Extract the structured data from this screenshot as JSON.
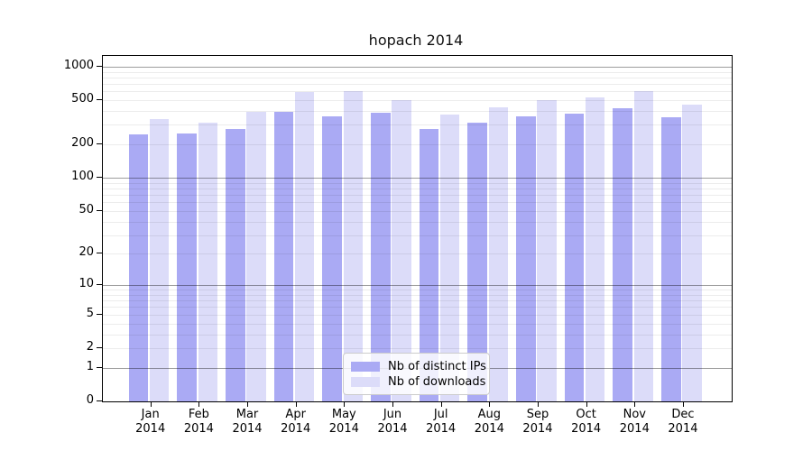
{
  "title": "hopach 2014",
  "chart_data": {
    "type": "bar",
    "title": "hopach 2014",
    "year": "2014",
    "months": [
      "Jan",
      "Feb",
      "Mar",
      "Apr",
      "May",
      "Jun",
      "Jul",
      "Aug",
      "Sep",
      "Oct",
      "Nov",
      "Dec"
    ],
    "series": [
      {
        "name": "Nb of distinct IPs",
        "color": "#aaaaf4",
        "values": [
          245,
          250,
          278,
          390,
          356,
          384,
          275,
          314,
          355,
          376,
          420,
          352
        ]
      },
      {
        "name": "Nb of downloads",
        "color": "#dcdcf9",
        "values": [
          339,
          315,
          391,
          598,
          601,
          500,
          372,
          434,
          497,
          526,
          600,
          460
        ]
      }
    ],
    "y_ticks": [
      0,
      1,
      2,
      5,
      10,
      20,
      50,
      100,
      200,
      500,
      1000
    ],
    "y_minor_gridlines": [
      2,
      3,
      4,
      5,
      6,
      7,
      8,
      9,
      20,
      30,
      40,
      50,
      60,
      70,
      80,
      90,
      200,
      300,
      400,
      500,
      600,
      700,
      800,
      900
    ],
    "y_major_gridlines": [
      1,
      10,
      100,
      1000
    ],
    "y_scale": "log10(1+x)",
    "ylim": [
      0,
      1100
    ],
    "xlabel": "",
    "ylabel": "",
    "grid": true,
    "legend_position": "bottom-center"
  }
}
